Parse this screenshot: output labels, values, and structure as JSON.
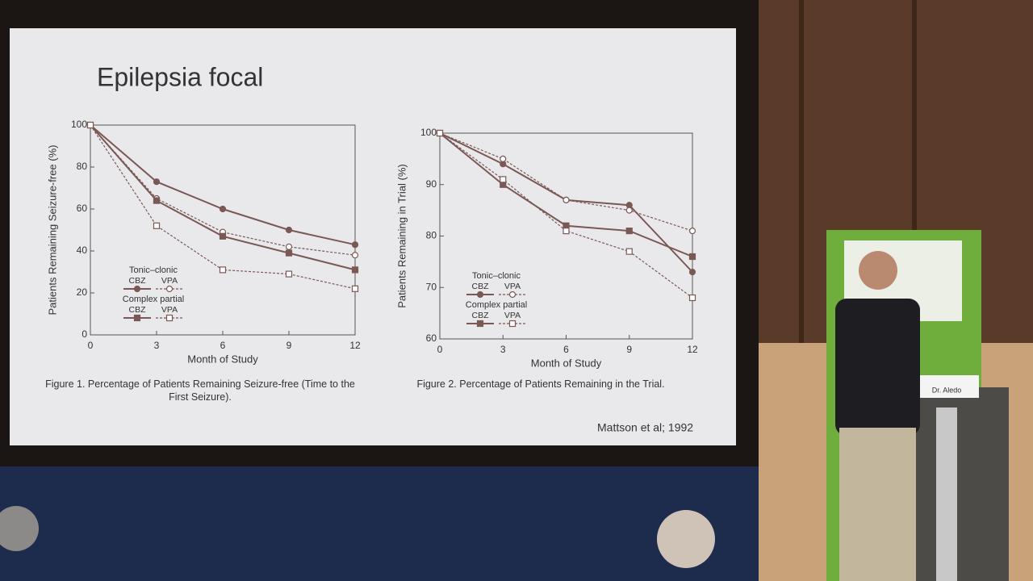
{
  "slide_title": "Epilepsia focal",
  "citation": "Mattson et al; 1992",
  "podium_label": "Dr. Aledo",
  "chart_data": [
    {
      "type": "line",
      "caption": "Figure 1. Percentage of Patients Remaining Seizure-free (Time to the First Seizure).",
      "x_label": "Month of Study",
      "y_label": "Patients Remaining Seizure-free (%)",
      "x": [
        0,
        3,
        6,
        9,
        12
      ],
      "xlim": [
        0,
        12
      ],
      "xticks": [
        0,
        3,
        6,
        9,
        12
      ],
      "ylim": [
        0,
        100
      ],
      "yticks": [
        0,
        20,
        40,
        60,
        80,
        100
      ],
      "legend_groups": [
        "Tonic–clonic",
        "Complex partial"
      ],
      "series": [
        {
          "name": "CBZ",
          "color": "#7a5856",
          "marker": "circle",
          "line_style": "solid",
          "values": [
            100,
            73,
            60,
            50,
            43
          ]
        },
        {
          "name": "VPA",
          "color": "#7a5856",
          "marker": "circle-open",
          "line_style": "dashed",
          "values": [
            100,
            65,
            49,
            42,
            38
          ]
        },
        {
          "name": "CBZ",
          "color": "#7a5856",
          "marker": "square",
          "line_style": "solid",
          "values": [
            100,
            64,
            47,
            39,
            31
          ]
        },
        {
          "name": "VPA",
          "color": "#7a5856",
          "marker": "square-open",
          "line_style": "dashed",
          "values": [
            100,
            52,
            31,
            29,
            22
          ]
        }
      ]
    },
    {
      "type": "line",
      "caption": "Figure 2. Percentage of Patients Remaining in the Trial.",
      "x_label": "Month of Study",
      "y_label": "Patients Remaining in Trial (%)",
      "x": [
        0,
        3,
        6,
        9,
        12
      ],
      "xlim": [
        0,
        12
      ],
      "xticks": [
        0,
        3,
        6,
        9,
        12
      ],
      "ylim": [
        60,
        100
      ],
      "yticks": [
        60,
        70,
        80,
        90,
        100
      ],
      "legend_groups": [
        "Tonic–clonic",
        "Complex partial"
      ],
      "series": [
        {
          "name": "CBZ",
          "color": "#7a5856",
          "marker": "circle",
          "line_style": "solid",
          "values": [
            100,
            94,
            87,
            86,
            73
          ]
        },
        {
          "name": "VPA",
          "color": "#7a5856",
          "marker": "circle-open",
          "line_style": "dashed",
          "values": [
            100,
            95,
            87,
            85,
            81
          ]
        },
        {
          "name": "CBZ",
          "color": "#7a5856",
          "marker": "square",
          "line_style": "solid",
          "values": [
            100,
            90,
            82,
            81,
            76
          ]
        },
        {
          "name": "VPA",
          "color": "#7a5856",
          "marker": "square-open",
          "line_style": "dashed",
          "values": [
            100,
            91,
            81,
            77,
            68
          ]
        }
      ]
    }
  ]
}
